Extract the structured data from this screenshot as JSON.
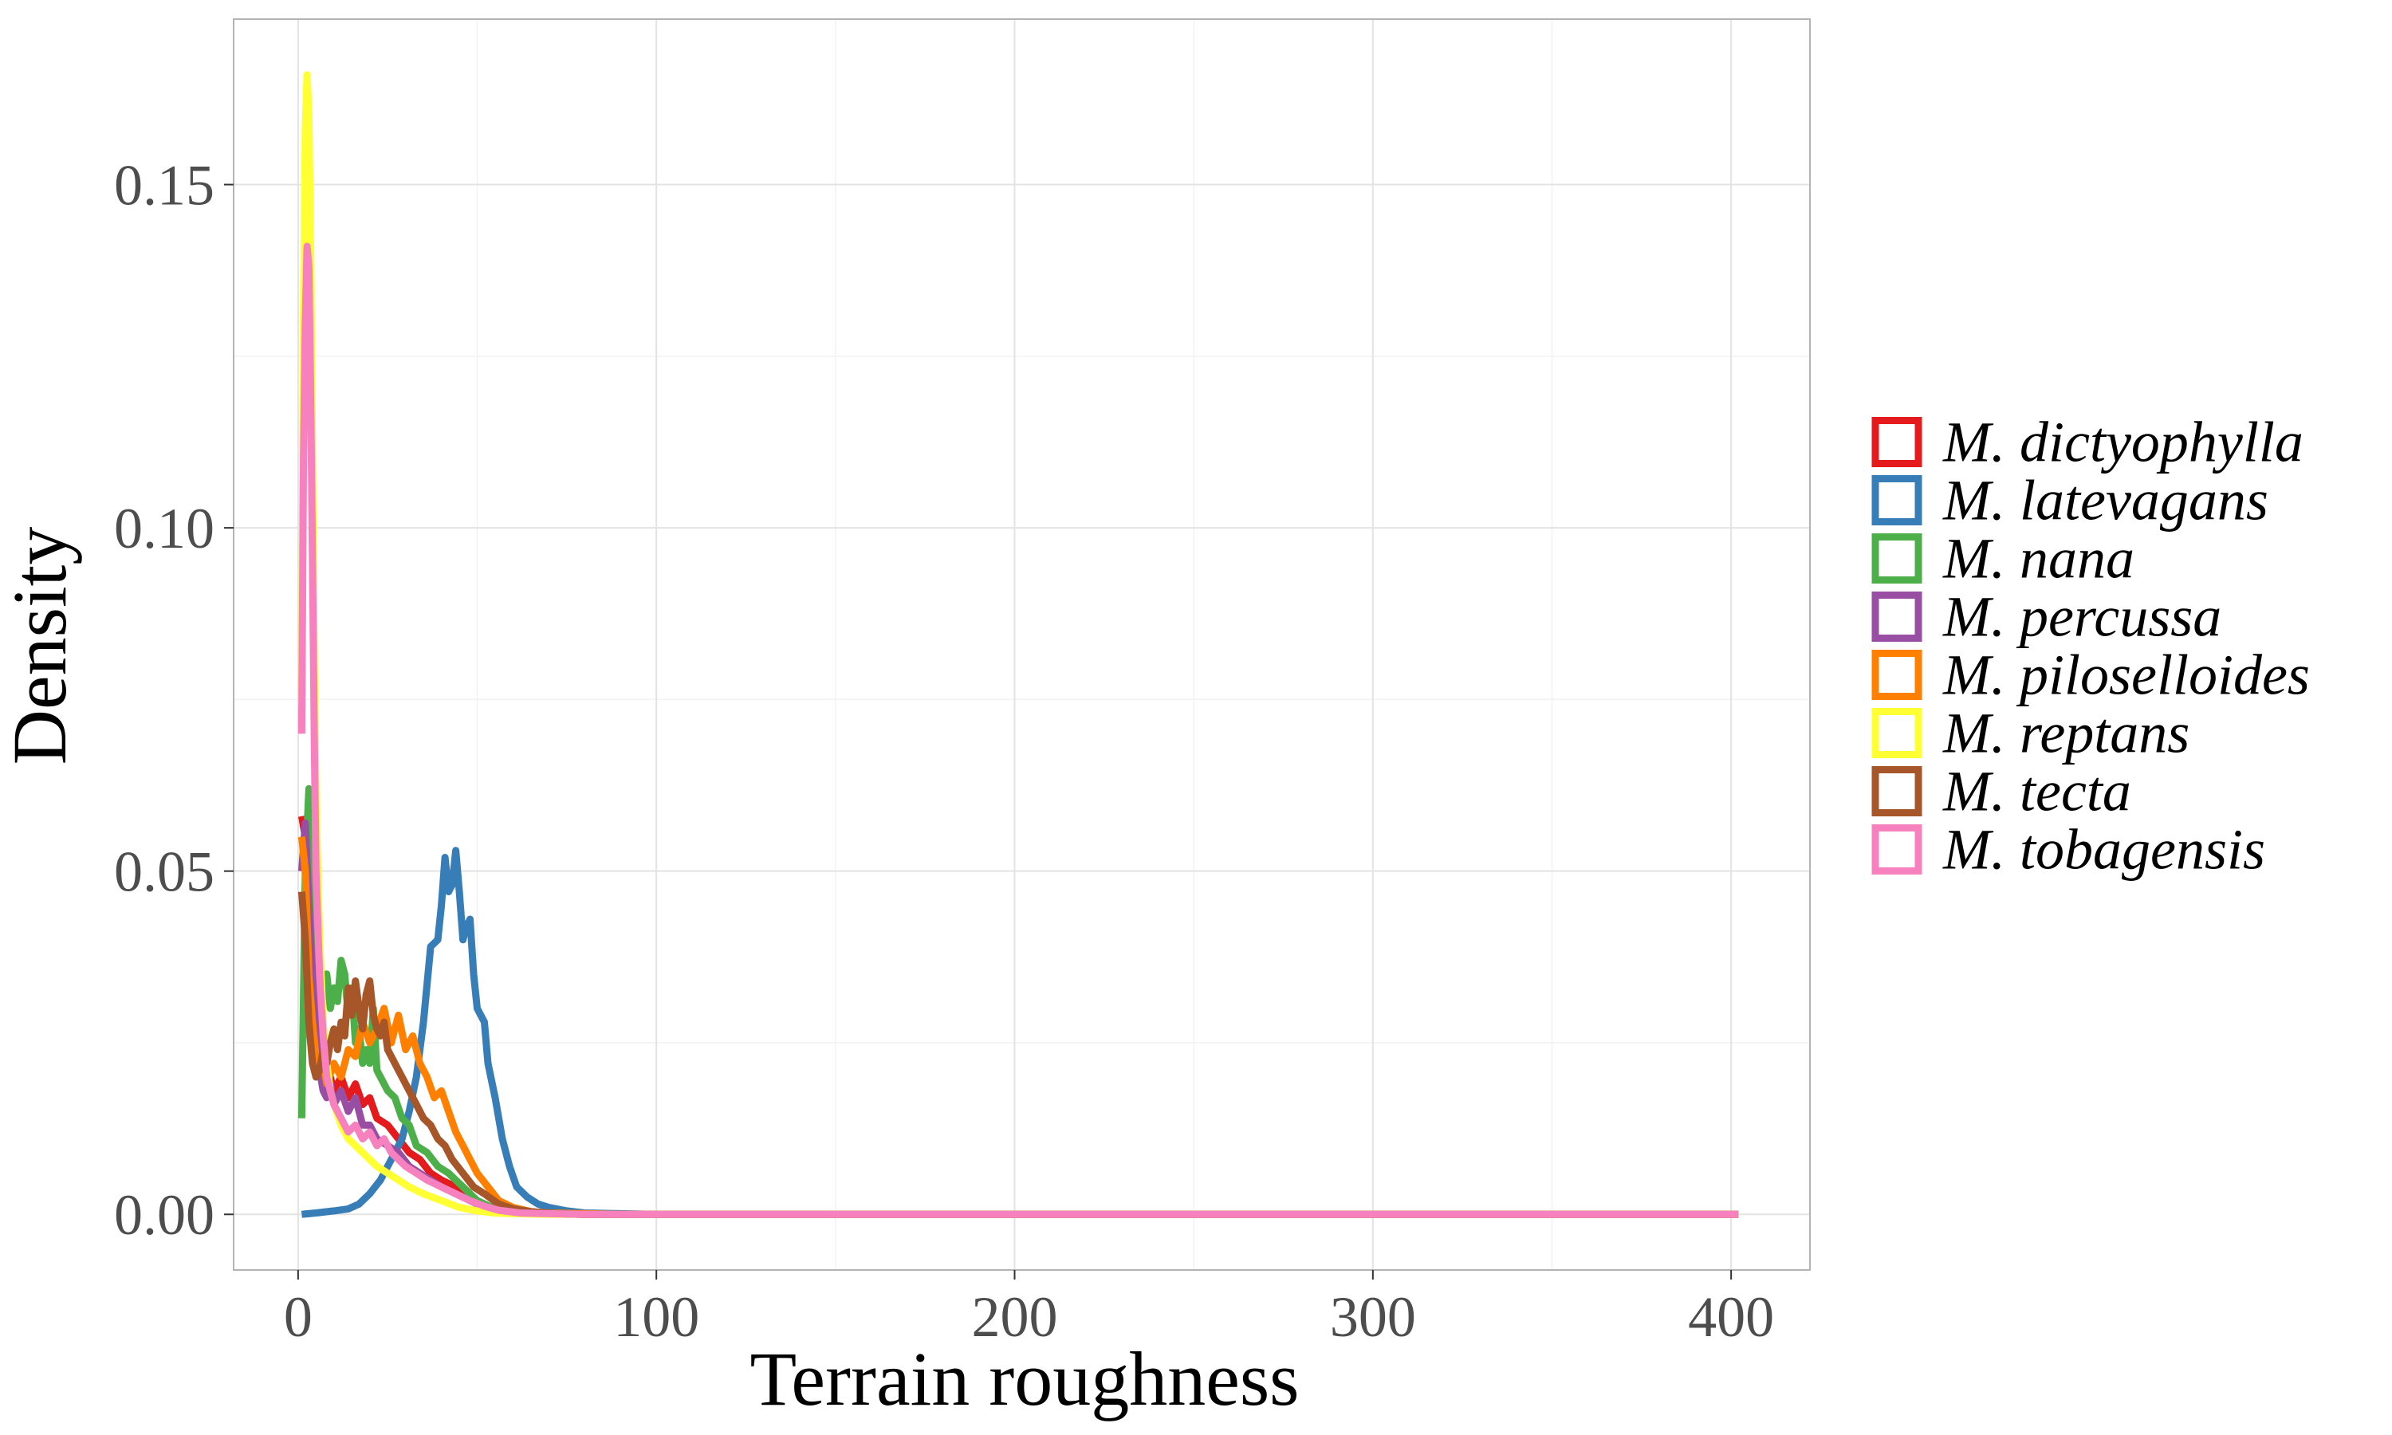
{
  "chart_data": {
    "type": "line",
    "title": "",
    "xlabel": "Terrain roughness",
    "ylabel": "Density",
    "xlim": [
      -18,
      422
    ],
    "ylim": [
      -0.0081,
      0.1741
    ],
    "xticks": [
      0,
      100,
      200,
      300,
      400
    ],
    "xtick_labels": [
      "0",
      "100",
      "200",
      "300",
      "400"
    ],
    "yticks": [
      0.0,
      0.05,
      0.1,
      0.15
    ],
    "ytick_labels": [
      "0.00",
      "0.05",
      "0.10",
      "0.15"
    ],
    "grid": true,
    "legend_position": "right",
    "series": [
      {
        "name": "M. dictyophylla",
        "color": "#E41A1C",
        "points": [
          [
            1,
            0.058
          ],
          [
            2,
            0.055
          ],
          [
            3,
            0.047
          ],
          [
            4,
            0.038
          ],
          [
            5,
            0.029
          ],
          [
            6,
            0.023
          ],
          [
            7,
            0.021
          ],
          [
            8,
            0.019
          ],
          [
            9,
            0.02
          ],
          [
            10,
            0.018
          ],
          [
            12,
            0.02
          ],
          [
            14,
            0.017
          ],
          [
            16,
            0.019
          ],
          [
            18,
            0.016
          ],
          [
            20,
            0.017
          ],
          [
            22,
            0.014
          ],
          [
            25,
            0.013
          ],
          [
            28,
            0.011
          ],
          [
            31,
            0.009
          ],
          [
            34,
            0.008
          ],
          [
            37,
            0.006
          ],
          [
            40,
            0.005
          ],
          [
            44,
            0.004
          ],
          [
            48,
            0.002
          ],
          [
            52,
            0.0012
          ],
          [
            56,
            0.0005
          ],
          [
            62,
            0.0002
          ],
          [
            70,
            0.0001
          ],
          [
            80,
            0
          ],
          [
            100,
            0
          ],
          [
            200,
            0
          ],
          [
            300,
            0
          ],
          [
            402,
            0
          ]
        ]
      },
      {
        "name": "M. latevagans",
        "color": "#377EB8",
        "points": [
          [
            1,
            0
          ],
          [
            5,
            0.0002
          ],
          [
            10,
            0.0005
          ],
          [
            14,
            0.0008
          ],
          [
            17,
            0.0015
          ],
          [
            20,
            0.003
          ],
          [
            23,
            0.005
          ],
          [
            26,
            0.008
          ],
          [
            29,
            0.011
          ],
          [
            31,
            0.015
          ],
          [
            33,
            0.02
          ],
          [
            35,
            0.028
          ],
          [
            37,
            0.039
          ],
          [
            39,
            0.04
          ],
          [
            40,
            0.045
          ],
          [
            41,
            0.052
          ],
          [
            42,
            0.047
          ],
          [
            43,
            0.048
          ],
          [
            44,
            0.053
          ],
          [
            45,
            0.047
          ],
          [
            46,
            0.04
          ],
          [
            47,
            0.042
          ],
          [
            48,
            0.043
          ],
          [
            49,
            0.035
          ],
          [
            50,
            0.03
          ],
          [
            52,
            0.028
          ],
          [
            53,
            0.022
          ],
          [
            55,
            0.017
          ],
          [
            57,
            0.011
          ],
          [
            59,
            0.007
          ],
          [
            61,
            0.004
          ],
          [
            64,
            0.0025
          ],
          [
            67,
            0.0015
          ],
          [
            70,
            0.001
          ],
          [
            75,
            0.0005
          ],
          [
            80,
            0.0002
          ],
          [
            90,
            0.0001
          ],
          [
            100,
            0
          ],
          [
            200,
            0
          ],
          [
            300,
            0
          ],
          [
            402,
            0
          ]
        ]
      },
      {
        "name": "M. nana",
        "color": "#4DAF4A",
        "points": [
          [
            1,
            0.014
          ],
          [
            2,
            0.05
          ],
          [
            3,
            0.062
          ],
          [
            4,
            0.05
          ],
          [
            5,
            0.04
          ],
          [
            6,
            0.036
          ],
          [
            7,
            0.033
          ],
          [
            8,
            0.035
          ],
          [
            9,
            0.03
          ],
          [
            10,
            0.033
          ],
          [
            11,
            0.031
          ],
          [
            12,
            0.037
          ],
          [
            13,
            0.035
          ],
          [
            14,
            0.029
          ],
          [
            15,
            0.033
          ],
          [
            16,
            0.025
          ],
          [
            17,
            0.027
          ],
          [
            18,
            0.022
          ],
          [
            19,
            0.024
          ],
          [
            20,
            0.022
          ],
          [
            21,
            0.03
          ],
          [
            22,
            0.021
          ],
          [
            23,
            0.02
          ],
          [
            25,
            0.018
          ],
          [
            27,
            0.017
          ],
          [
            29,
            0.014
          ],
          [
            31,
            0.013
          ],
          [
            33,
            0.01
          ],
          [
            36,
            0.009
          ],
          [
            39,
            0.007
          ],
          [
            42,
            0.006
          ],
          [
            46,
            0.004
          ],
          [
            50,
            0.002
          ],
          [
            55,
            0.0008
          ],
          [
            60,
            0.0003
          ],
          [
            70,
            0.0001
          ],
          [
            80,
            0
          ],
          [
            100,
            0
          ],
          [
            200,
            0
          ],
          [
            300,
            0
          ],
          [
            402,
            0
          ]
        ]
      },
      {
        "name": "M. percussa",
        "color": "#984EA3",
        "points": [
          [
            1,
            0.05
          ],
          [
            2,
            0.057
          ],
          [
            3,
            0.045
          ],
          [
            4,
            0.035
          ],
          [
            5,
            0.026
          ],
          [
            6,
            0.021
          ],
          [
            7,
            0.018
          ],
          [
            8,
            0.017
          ],
          [
            9,
            0.019
          ],
          [
            10,
            0.016
          ],
          [
            12,
            0.018
          ],
          [
            14,
            0.015
          ],
          [
            16,
            0.017
          ],
          [
            18,
            0.013
          ],
          [
            20,
            0.013
          ],
          [
            22,
            0.011
          ],
          [
            25,
            0.01
          ],
          [
            28,
            0.009
          ],
          [
            31,
            0.007
          ],
          [
            34,
            0.006
          ],
          [
            37,
            0.005
          ],
          [
            40,
            0.004
          ],
          [
            44,
            0.003
          ],
          [
            48,
            0.002
          ],
          [
            52,
            0.001
          ],
          [
            57,
            0.0005
          ],
          [
            63,
            0.0002
          ],
          [
            70,
            0.0001
          ],
          [
            80,
            0
          ],
          [
            100,
            0
          ],
          [
            200,
            0
          ],
          [
            300,
            0
          ],
          [
            402,
            0
          ]
        ]
      },
      {
        "name": "M. piloselloides",
        "color": "#FF7F00",
        "points": [
          [
            1,
            0.055
          ],
          [
            2,
            0.05
          ],
          [
            3,
            0.035
          ],
          [
            4,
            0.028
          ],
          [
            5,
            0.023
          ],
          [
            6,
            0.021
          ],
          [
            7,
            0.022
          ],
          [
            8,
            0.019
          ],
          [
            10,
            0.022
          ],
          [
            12,
            0.02
          ],
          [
            14,
            0.024
          ],
          [
            16,
            0.023
          ],
          [
            18,
            0.028
          ],
          [
            20,
            0.025
          ],
          [
            22,
            0.027
          ],
          [
            24,
            0.03
          ],
          [
            26,
            0.025
          ],
          [
            28,
            0.029
          ],
          [
            30,
            0.024
          ],
          [
            32,
            0.026
          ],
          [
            34,
            0.022
          ],
          [
            36,
            0.02
          ],
          [
            38,
            0.017
          ],
          [
            40,
            0.018
          ],
          [
            42,
            0.015
          ],
          [
            44,
            0.012
          ],
          [
            46,
            0.01
          ],
          [
            48,
            0.008
          ],
          [
            50,
            0.006
          ],
          [
            53,
            0.004
          ],
          [
            56,
            0.002
          ],
          [
            60,
            0.001
          ],
          [
            65,
            0.0004
          ],
          [
            70,
            0.0002
          ],
          [
            80,
            0.0001
          ],
          [
            90,
            0
          ],
          [
            100,
            0
          ],
          [
            200,
            0
          ],
          [
            300,
            0
          ],
          [
            402,
            0
          ]
        ]
      },
      {
        "name": "M. reptans",
        "color": "#FFFF33",
        "points": [
          [
            1,
            0.075
          ],
          [
            1.5,
            0.13
          ],
          [
            2,
            0.158
          ],
          [
            2.5,
            0.166
          ],
          [
            3,
            0.16
          ],
          [
            3.5,
            0.14
          ],
          [
            4,
            0.11
          ],
          [
            4.5,
            0.08
          ],
          [
            5,
            0.06
          ],
          [
            6,
            0.04
          ],
          [
            7,
            0.028
          ],
          [
            8,
            0.022
          ],
          [
            9,
            0.018
          ],
          [
            10,
            0.016
          ],
          [
            12,
            0.013
          ],
          [
            14,
            0.011
          ],
          [
            16,
            0.01
          ],
          [
            18,
            0.009
          ],
          [
            20,
            0.008
          ],
          [
            22,
            0.007
          ],
          [
            25,
            0.006
          ],
          [
            28,
            0.005
          ],
          [
            31,
            0.004
          ],
          [
            35,
            0.003
          ],
          [
            40,
            0.002
          ],
          [
            45,
            0.001
          ],
          [
            50,
            0.0005
          ],
          [
            55,
            0.0002
          ],
          [
            60,
            0.0001
          ],
          [
            70,
            0
          ],
          [
            100,
            0
          ],
          [
            200,
            0
          ],
          [
            300,
            0
          ],
          [
            402,
            0
          ]
        ]
      },
      {
        "name": "M. tecta",
        "color": "#A65628",
        "points": [
          [
            1,
            0.047
          ],
          [
            2,
            0.04
          ],
          [
            3,
            0.028
          ],
          [
            4,
            0.022
          ],
          [
            5,
            0.02
          ],
          [
            6,
            0.021
          ],
          [
            7,
            0.024
          ],
          [
            8,
            0.022
          ],
          [
            9,
            0.025
          ],
          [
            10,
            0.027
          ],
          [
            11,
            0.024
          ],
          [
            12,
            0.028
          ],
          [
            13,
            0.026
          ],
          [
            14,
            0.033
          ],
          [
            15,
            0.029
          ],
          [
            16,
            0.034
          ],
          [
            17,
            0.03
          ],
          [
            18,
            0.027
          ],
          [
            19,
            0.032
          ],
          [
            20,
            0.034
          ],
          [
            21,
            0.029
          ],
          [
            22,
            0.027
          ],
          [
            23,
            0.026
          ],
          [
            24,
            0.028
          ],
          [
            25,
            0.024
          ],
          [
            27,
            0.022
          ],
          [
            29,
            0.02
          ],
          [
            31,
            0.018
          ],
          [
            33,
            0.016
          ],
          [
            35,
            0.014
          ],
          [
            37,
            0.013
          ],
          [
            39,
            0.011
          ],
          [
            41,
            0.01
          ],
          [
            43,
            0.008
          ],
          [
            46,
            0.006
          ],
          [
            49,
            0.004
          ],
          [
            52,
            0.003
          ],
          [
            56,
            0.0015
          ],
          [
            60,
            0.0008
          ],
          [
            65,
            0.0004
          ],
          [
            72,
            0.0001
          ],
          [
            80,
            0
          ],
          [
            100,
            0
          ],
          [
            200,
            0
          ],
          [
            300,
            0
          ],
          [
            402,
            0
          ]
        ]
      },
      {
        "name": "M. tobagensis",
        "color": "#F781BF",
        "points": [
          [
            1,
            0.07
          ],
          [
            1.5,
            0.11
          ],
          [
            2,
            0.13
          ],
          [
            2.5,
            0.141
          ],
          [
            3,
            0.138
          ],
          [
            3.5,
            0.12
          ],
          [
            4,
            0.095
          ],
          [
            4.5,
            0.07
          ],
          [
            5,
            0.05
          ],
          [
            6,
            0.035
          ],
          [
            7,
            0.026
          ],
          [
            8,
            0.02
          ],
          [
            9,
            0.018
          ],
          [
            10,
            0.016
          ],
          [
            11,
            0.015
          ],
          [
            12,
            0.014
          ],
          [
            14,
            0.012
          ],
          [
            16,
            0.013
          ],
          [
            18,
            0.011
          ],
          [
            20,
            0.012
          ],
          [
            22,
            0.01
          ],
          [
            24,
            0.011
          ],
          [
            26,
            0.009
          ],
          [
            28,
            0.008
          ],
          [
            30,
            0.007
          ],
          [
            33,
            0.006
          ],
          [
            36,
            0.005
          ],
          [
            40,
            0.004
          ],
          [
            44,
            0.003
          ],
          [
            48,
            0.002
          ],
          [
            52,
            0.0012
          ],
          [
            56,
            0.0006
          ],
          [
            62,
            0.0002
          ],
          [
            70,
            0.0001
          ],
          [
            80,
            0
          ],
          [
            100,
            0
          ],
          [
            200,
            0
          ],
          [
            300,
            0
          ],
          [
            402,
            0
          ]
        ]
      }
    ]
  }
}
